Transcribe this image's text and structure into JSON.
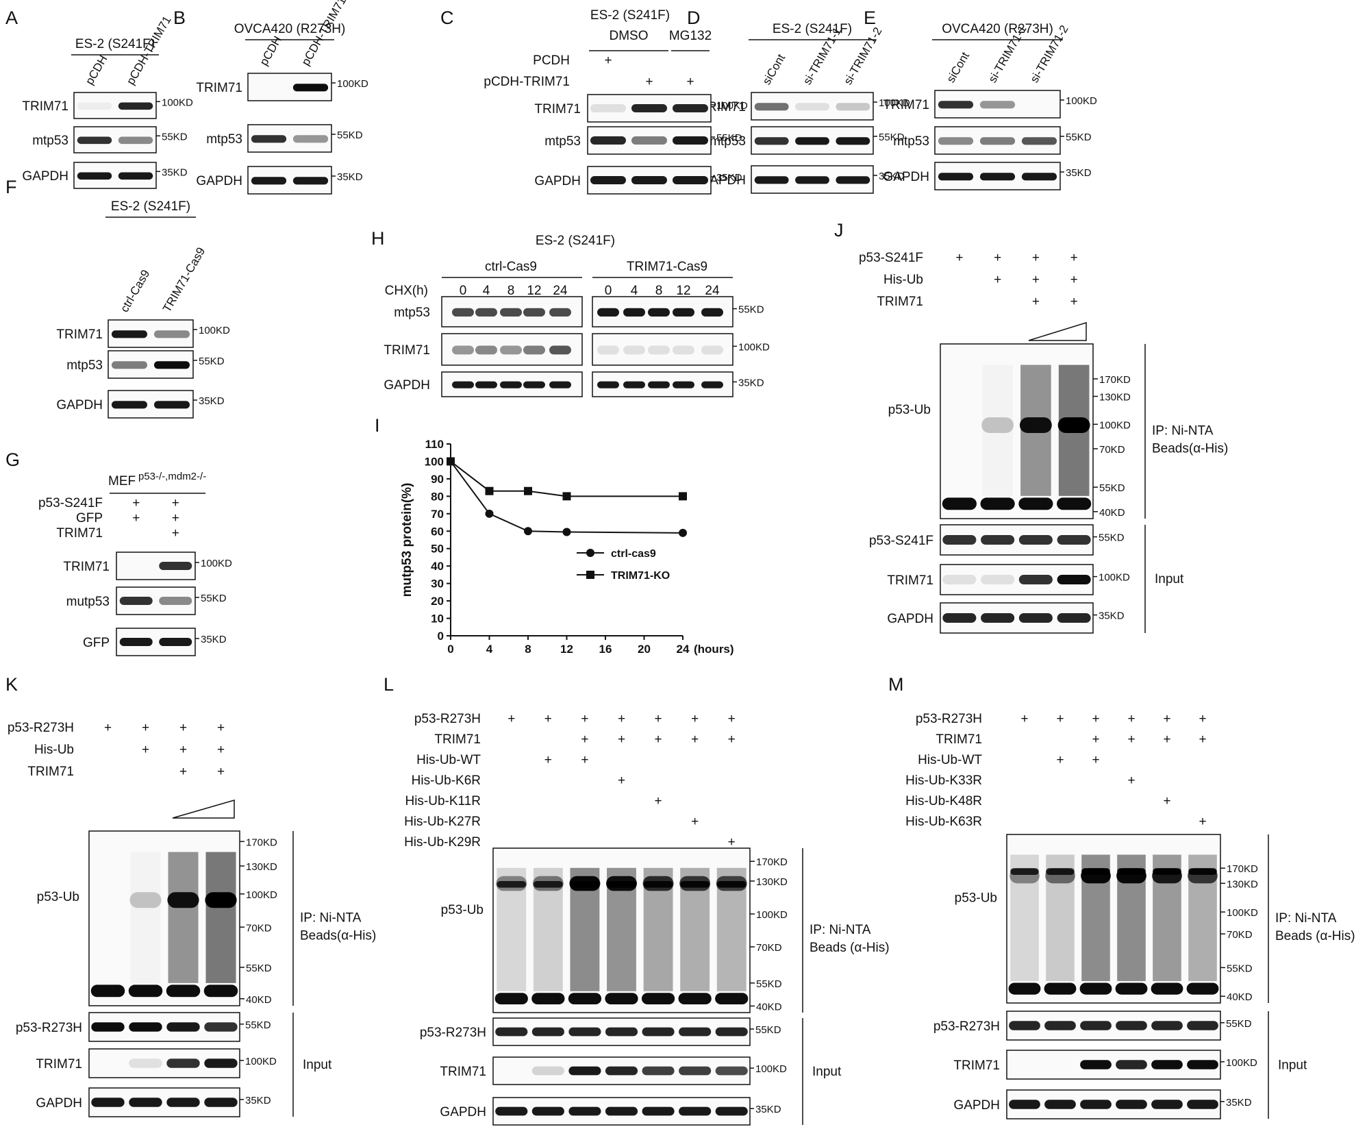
{
  "panels": {
    "A": {
      "letter": "A",
      "header": "ES-2 (S241F)",
      "lanes": [
        "pCDH",
        "pCDH-TRIM71"
      ],
      "rows": [
        {
          "name": "TRIM71",
          "marker": "100KD"
        },
        {
          "name": "mtp53",
          "marker": "55KD"
        },
        {
          "name": "GAPDH",
          "marker": "35KD"
        }
      ]
    },
    "B": {
      "letter": "B",
      "header": "OVCA420 (R273H)",
      "lanes": [
        "pCDH",
        "pCDH-TRIM71"
      ],
      "rows": [
        {
          "name": "TRIM71",
          "marker": "100KD"
        },
        {
          "name": "mtp53",
          "marker": "55KD"
        },
        {
          "name": "GAPDH",
          "marker": "35KD"
        }
      ]
    },
    "C": {
      "letter": "C",
      "header": "ES-2 (S241F)",
      "groups": [
        "DMSO",
        "MG132"
      ],
      "conditions": [
        {
          "name": "PCDH",
          "signs": [
            "+",
            "",
            ""
          ]
        },
        {
          "name": "pCDH-TRIM71",
          "signs": [
            "",
            "+",
            "+"
          ]
        }
      ],
      "rows": [
        {
          "name": "TRIM71",
          "marker": "100KD"
        },
        {
          "name": "mtp53",
          "marker": "55KD"
        },
        {
          "name": "GAPDH",
          "marker": "35KD"
        }
      ]
    },
    "D": {
      "letter": "D",
      "header": "ES-2 (S241F)",
      "lanes": [
        "siCont",
        "si-TRIM71-1",
        "si-TRIM71-2"
      ],
      "rows": [
        {
          "name": "TRIM71",
          "marker": "100KD"
        },
        {
          "name": "mtp53",
          "marker": "55KD"
        },
        {
          "name": "GAPDH",
          "marker": "35KD"
        }
      ]
    },
    "E": {
      "letter": "E",
      "header": "OVCA420 (R273H)",
      "lanes": [
        "siCont",
        "si-TRIM71-1",
        "si-TRIM71-2"
      ],
      "rows": [
        {
          "name": "TRIM71",
          "marker": "100KD"
        },
        {
          "name": "mtp53",
          "marker": "55KD"
        },
        {
          "name": "GAPDH",
          "marker": "35KD"
        }
      ]
    },
    "F": {
      "letter": "F",
      "header": "ES-2 (S241F)",
      "lanes": [
        "ctrl-Cas9",
        "TRIM71-Cas9"
      ],
      "rows": [
        {
          "name": "TRIM71",
          "marker": "100KD"
        },
        {
          "name": "mtp53",
          "marker": "55KD"
        },
        {
          "name": "GAPDH",
          "marker": "35KD"
        }
      ]
    },
    "G": {
      "letter": "G",
      "header_main": "MEF",
      "header_sup": "p53-/-,mdm2-/-",
      "conditions": [
        {
          "name": "p53-S241F",
          "signs": [
            "+",
            "+"
          ]
        },
        {
          "name": "GFP",
          "signs": [
            "+",
            "+"
          ]
        },
        {
          "name": "TRIM71",
          "signs": [
            "",
            "+"
          ]
        }
      ],
      "rows": [
        {
          "name": "TRIM71",
          "marker": "100KD"
        },
        {
          "name": "mutp53",
          "marker": "55KD"
        },
        {
          "name": "GFP",
          "marker": "35KD"
        }
      ]
    },
    "H": {
      "letter": "H",
      "header": "ES-2 (S241F)",
      "groups": [
        "ctrl-Cas9",
        "TRIM71-Cas9"
      ],
      "chx_label": "CHX(h)",
      "times": [
        "0",
        "4",
        "8",
        "12",
        "24",
        "0",
        "4",
        "8",
        "12",
        "24"
      ],
      "rows": [
        {
          "name": "mtp53",
          "marker": "55KD"
        },
        {
          "name": "TRIM71",
          "marker": "100KD"
        },
        {
          "name": "GAPDH",
          "marker": "35KD"
        }
      ]
    },
    "J": {
      "letter": "J",
      "conditions": [
        {
          "name": "p53-S241F",
          "signs": [
            "+",
            "+",
            "+",
            "+"
          ]
        },
        {
          "name": "His-Ub",
          "signs": [
            "",
            "+",
            "+",
            "+"
          ]
        },
        {
          "name": "TRIM71",
          "signs": [
            "",
            "",
            "+",
            "+"
          ]
        }
      ],
      "ip_row": "p53-Ub",
      "ip_label_1": "IP: Ni-NTA",
      "ip_label_2": "Beads(α-His)",
      "ip_markers": [
        "170KD",
        "130KD",
        "100KD",
        "70KD",
        "55KD",
        "40KD"
      ],
      "input_rows": [
        {
          "name": "p53-S241F",
          "marker": "55KD"
        },
        {
          "name": "TRIM71",
          "marker": "100KD"
        },
        {
          "name": "GAPDH",
          "marker": "35KD"
        }
      ],
      "input_label": "Input"
    },
    "K": {
      "letter": "K",
      "conditions": [
        {
          "name": "p53-R273H",
          "signs": [
            "+",
            "+",
            "+",
            "+"
          ]
        },
        {
          "name": "His-Ub",
          "signs": [
            "",
            "+",
            "+",
            "+"
          ]
        },
        {
          "name": "TRIM71",
          "signs": [
            "",
            "",
            "+",
            "+"
          ]
        }
      ],
      "ip_row": "p53-Ub",
      "ip_label_1": "IP: Ni-NTA",
      "ip_label_2": "Beads(α-His)",
      "ip_markers": [
        "170KD",
        "130KD",
        "100KD",
        "70KD",
        "55KD",
        "40KD"
      ],
      "input_rows": [
        {
          "name": "p53-R273H",
          "marker": "55KD"
        },
        {
          "name": "TRIM71",
          "marker": "100KD"
        },
        {
          "name": "GAPDH",
          "marker": "35KD"
        }
      ],
      "input_label": "Input"
    },
    "L": {
      "letter": "L",
      "conditions": [
        {
          "name": "p53-R273H",
          "signs": [
            "+",
            "+",
            "+",
            "+",
            "+",
            "+",
            "+"
          ]
        },
        {
          "name": "TRIM71",
          "signs": [
            "",
            "",
            "+",
            "+",
            "+",
            "+",
            "+"
          ]
        },
        {
          "name": "His-Ub-WT",
          "signs": [
            "",
            "+",
            "+",
            "",
            "",
            "",
            ""
          ]
        },
        {
          "name": "His-Ub-K6R",
          "signs": [
            "",
            "",
            "",
            "+",
            "",
            "",
            ""
          ]
        },
        {
          "name": "His-Ub-K11R",
          "signs": [
            "",
            "",
            "",
            "",
            "+",
            "",
            ""
          ]
        },
        {
          "name": "His-Ub-K27R",
          "signs": [
            "",
            "",
            "",
            "",
            "",
            "+",
            ""
          ]
        },
        {
          "name": "His-Ub-K29R",
          "signs": [
            "",
            "",
            "",
            "",
            "",
            "",
            "+"
          ]
        }
      ],
      "ip_row": "p53-Ub",
      "ip_label_1": "IP: Ni-NTA",
      "ip_label_2": "Beads (α-His)",
      "ip_markers": [
        "170KD",
        "130KD",
        "100KD",
        "70KD",
        "55KD",
        "40KD"
      ],
      "input_rows": [
        {
          "name": "p53-R273H",
          "marker": "55KD"
        },
        {
          "name": "TRIM71",
          "marker": "100KD"
        },
        {
          "name": "GAPDH",
          "marker": "35KD"
        }
      ],
      "input_label": "Input"
    },
    "M": {
      "letter": "M",
      "conditions": [
        {
          "name": "p53-R273H",
          "signs": [
            "+",
            "+",
            "+",
            "+",
            "+",
            "+"
          ]
        },
        {
          "name": "TRIM71",
          "signs": [
            "",
            "",
            "+",
            "+",
            "+",
            "+"
          ]
        },
        {
          "name": "His-Ub-WT",
          "signs": [
            "",
            "+",
            "+",
            "",
            "",
            ""
          ]
        },
        {
          "name": "His-Ub-K33R",
          "signs": [
            "",
            "",
            "",
            "+",
            "",
            ""
          ]
        },
        {
          "name": "His-Ub-K48R",
          "signs": [
            "",
            "",
            "",
            "",
            "+",
            ""
          ]
        },
        {
          "name": "His-Ub-K63R",
          "signs": [
            "",
            "",
            "",
            "",
            "",
            "+"
          ]
        }
      ],
      "ip_row": "p53-Ub",
      "ip_label_1": "IP: Ni-NTA",
      "ip_label_2": "Beads (α-His)",
      "ip_markers": [
        "170KD",
        "130KD",
        "100KD",
        "70KD",
        "55KD",
        "40KD"
      ],
      "input_rows": [
        {
          "name": "p53-R273H",
          "marker": "55KD"
        },
        {
          "name": "TRIM71",
          "marker": "100KD"
        },
        {
          "name": "GAPDH",
          "marker": "35KD"
        }
      ],
      "input_label": "Input"
    }
  },
  "chart_data": {
    "panel": "I",
    "type": "line",
    "ylabel": "mutp53 protein(%)",
    "xunit": "(hours)",
    "xticks": [
      0,
      4,
      8,
      12,
      16,
      20,
      24
    ],
    "yticks": [
      0,
      10,
      20,
      30,
      40,
      50,
      60,
      70,
      80,
      90,
      100,
      110
    ],
    "xlim": [
      0,
      24
    ],
    "ylim": [
      0,
      110
    ],
    "legend_placement": "center-right",
    "series": [
      {
        "name": "ctrl-cas9",
        "marker": "circle",
        "x": [
          0,
          4,
          8,
          12,
          24
        ],
        "y": [
          100,
          70,
          60,
          59.5,
          59
        ]
      },
      {
        "name": "TRIM71-KO",
        "marker": "square",
        "x": [
          0,
          4,
          8,
          12,
          24
        ],
        "y": [
          100,
          83,
          83,
          80,
          80
        ]
      }
    ]
  }
}
